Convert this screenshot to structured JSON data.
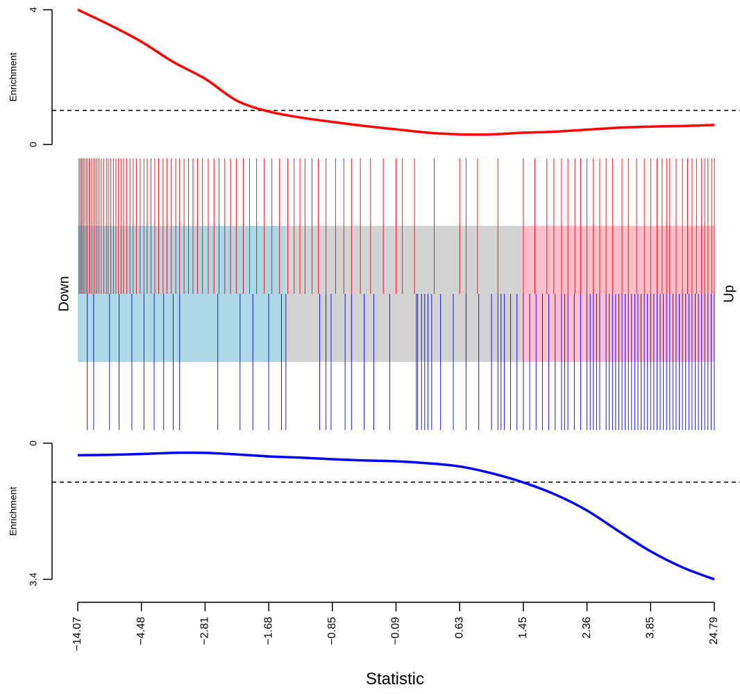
{
  "chart_data": [
    {
      "type": "line",
      "panel": "top",
      "ylabel": "Enrichment",
      "y_ticks": [
        "0",
        "4"
      ],
      "ylim": [
        0,
        4
      ],
      "reference_line": 1,
      "color": "#ff0000",
      "x": [
        0,
        0.05,
        0.1,
        0.15,
        0.2,
        0.25,
        0.3,
        0.35,
        0.4,
        0.45,
        0.5,
        0.55,
        0.6,
        0.65,
        0.7,
        0.75,
        0.8,
        0.85,
        0.9,
        0.95,
        1
      ],
      "y": [
        4.0,
        3.55,
        3.05,
        2.45,
        1.95,
        1.3,
        0.98,
        0.8,
        0.67,
        0.55,
        0.45,
        0.35,
        0.3,
        0.3,
        0.35,
        0.38,
        0.44,
        0.5,
        0.53,
        0.55,
        0.58
      ]
    },
    {
      "type": "barcode",
      "panel": "middle",
      "left_label": "Down",
      "right_label": "Up",
      "regions": [
        {
          "name": "down",
          "from": 0,
          "to": 0.327,
          "color": "#add8e6"
        },
        {
          "name": "middle",
          "from": 0.327,
          "to": 0.697,
          "color": "#d3d3d3"
        },
        {
          "name": "up",
          "from": 0.697,
          "to": 1,
          "color": "#ffc0cb"
        }
      ],
      "up_marks_color": "#ff0000",
      "down_marks_color": "#0000ff",
      "up_marks": [
        0.002,
        0.004,
        0.006,
        0.008,
        0.01,
        0.013,
        0.015,
        0.018,
        0.021,
        0.024,
        0.027,
        0.03,
        0.033,
        0.037,
        0.041,
        0.045,
        0.048,
        0.052,
        0.056,
        0.06,
        0.064,
        0.068,
        0.072,
        0.077,
        0.082,
        0.087,
        0.092,
        0.098,
        0.104,
        0.109,
        0.115,
        0.121,
        0.127,
        0.134,
        0.14,
        0.147,
        0.154,
        0.16,
        0.167,
        0.174,
        0.181,
        0.188,
        0.196,
        0.205,
        0.214,
        0.222,
        0.231,
        0.24,
        0.249,
        0.26,
        0.27,
        0.281,
        0.293,
        0.305,
        0.317,
        0.33,
        0.34,
        0.349,
        0.357,
        0.368,
        0.378,
        0.39,
        0.405,
        0.418,
        0.43,
        0.444,
        0.46,
        0.48,
        0.5,
        0.51,
        0.529,
        0.56,
        0.6,
        0.61,
        0.628,
        0.66,
        0.7,
        0.718,
        0.737,
        0.748,
        0.76,
        0.77,
        0.781,
        0.79,
        0.8,
        0.81,
        0.82,
        0.83,
        0.84,
        0.855,
        0.865,
        0.878,
        0.89,
        0.9,
        0.91,
        0.918,
        0.925,
        0.93,
        0.94,
        0.95,
        0.958,
        0.965,
        0.972,
        0.98,
        0.985,
        0.99,
        0.996,
        1.0
      ],
      "down_marks": [
        0.015,
        0.025,
        0.05,
        0.065,
        0.085,
        0.104,
        0.12,
        0.135,
        0.15,
        0.16,
        0.22,
        0.255,
        0.275,
        0.3,
        0.32,
        0.327,
        0.38,
        0.39,
        0.398,
        0.42,
        0.43,
        0.45,
        0.465,
        0.49,
        0.532,
        0.534,
        0.54,
        0.545,
        0.55,
        0.556,
        0.57,
        0.59,
        0.61,
        0.63,
        0.65,
        0.66,
        0.665,
        0.67,
        0.68,
        0.69,
        0.7,
        0.71,
        0.72,
        0.73,
        0.74,
        0.75,
        0.76,
        0.765,
        0.77,
        0.78,
        0.79,
        0.8,
        0.805,
        0.81,
        0.815,
        0.82,
        0.83,
        0.835,
        0.84,
        0.845,
        0.85,
        0.855,
        0.86,
        0.865,
        0.87,
        0.875,
        0.88,
        0.885,
        0.89,
        0.895,
        0.9,
        0.905,
        0.91,
        0.915,
        0.92,
        0.925,
        0.93,
        0.935,
        0.94,
        0.945,
        0.95,
        0.955,
        0.96,
        0.965,
        0.97,
        0.975,
        0.98,
        0.985,
        0.99,
        0.995,
        1.0
      ]
    },
    {
      "type": "line",
      "panel": "bottom",
      "ylabel": "Enrichment",
      "y_ticks": [
        "0",
        "3.4"
      ],
      "ylim": [
        0,
        3.4
      ],
      "reference_line": 1,
      "color": "#0000ff",
      "x": [
        0,
        0.05,
        0.1,
        0.15,
        0.2,
        0.25,
        0.3,
        0.35,
        0.4,
        0.45,
        0.5,
        0.55,
        0.6,
        0.65,
        0.7,
        0.75,
        0.8,
        0.85,
        0.9,
        0.95,
        1
      ],
      "y": [
        0.3,
        0.29,
        0.27,
        0.24,
        0.24,
        0.28,
        0.33,
        0.36,
        0.4,
        0.43,
        0.45,
        0.5,
        0.58,
        0.75,
        0.98,
        1.28,
        1.68,
        2.2,
        2.7,
        3.1,
        3.4
      ]
    }
  ],
  "x_axis": {
    "label": "Statistic",
    "ticks": [
      "−14.07",
      "−4.48",
      "−2.81",
      "−1.68",
      "−0.85",
      "−0.09",
      "0.63",
      "1.45",
      "2.36",
      "3.85",
      "24.79"
    ]
  }
}
